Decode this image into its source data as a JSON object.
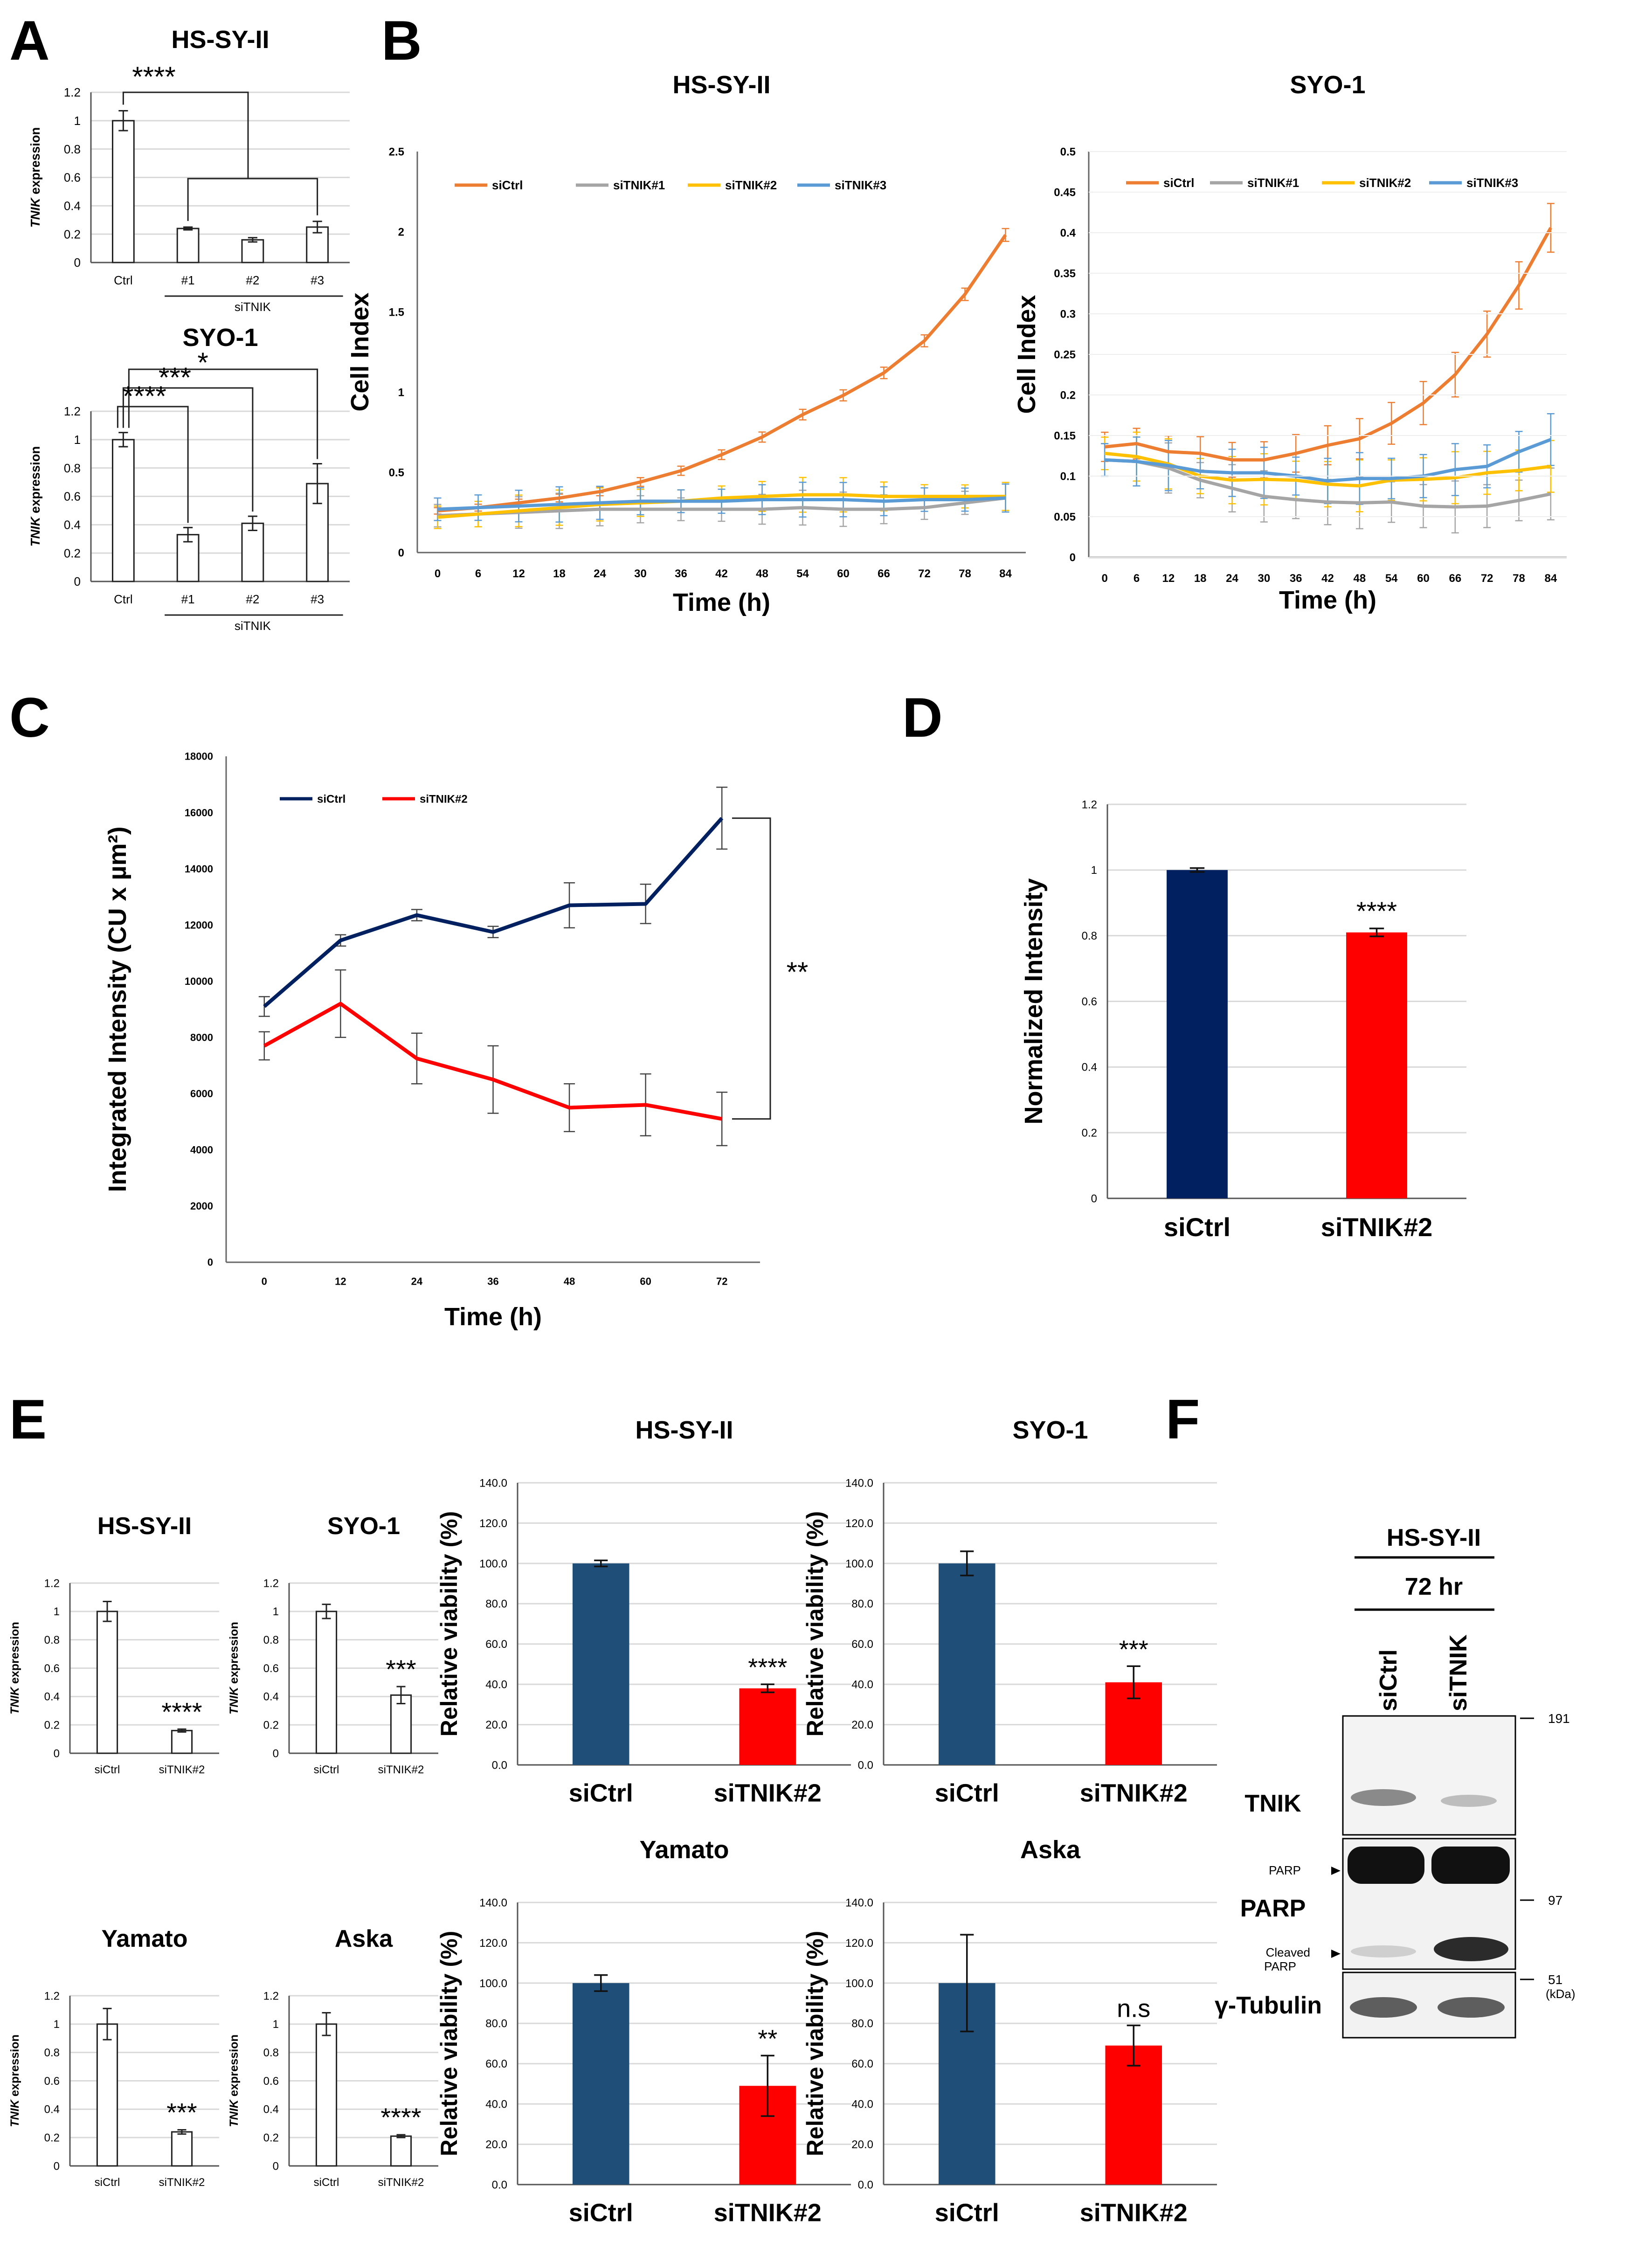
{
  "panel_letters": [
    "A",
    "B",
    "C",
    "D",
    "E",
    "F"
  ],
  "colors": {
    "orange": "#ED7D31",
    "gray": "#A5A5A5",
    "yellow": "#FFC000",
    "blue": "#5B9BD5",
    "navy": "#002060",
    "red": "#FF0000",
    "steel": "#1F4E79"
  },
  "chart_data": [
    {
      "id": "A1",
      "type": "bar",
      "title": "HS-SY-II",
      "ylabel": "TNIK expression",
      "categories": [
        "Ctrl",
        "#1",
        "#2",
        "#3"
      ],
      "group_label": "siTNIK",
      "values": [
        1.0,
        0.24,
        0.16,
        0.25
      ],
      "errors": [
        0.07,
        0.01,
        0.015,
        0.04
      ],
      "ylim": [
        0,
        1.2
      ],
      "yticks": [
        "0",
        "0.2",
        "0.4",
        "0.6",
        "0.8",
        "1",
        "1.2"
      ],
      "significance": [
        "****"
      ]
    },
    {
      "id": "A2",
      "type": "bar",
      "title": "SYO-1",
      "ylabel": "TNIK expression",
      "categories": [
        "Ctrl",
        "#1",
        "#2",
        "#3"
      ],
      "group_label": "siTNIK",
      "values": [
        1.0,
        0.33,
        0.41,
        0.69
      ],
      "errors": [
        0.05,
        0.05,
        0.05,
        0.14
      ],
      "ylim": [
        0,
        1.2
      ],
      "yticks": [
        "0",
        "0.2",
        "0.4",
        "0.6",
        "0.8",
        "1",
        "1.2"
      ],
      "significance": [
        "****",
        "***",
        "*"
      ]
    },
    {
      "id": "B1",
      "type": "line",
      "title": "HS-SY-II",
      "xlabel": "Time (h)",
      "ylabel": "Cell Index",
      "x": [
        0,
        6,
        12,
        18,
        24,
        30,
        36,
        42,
        48,
        54,
        60,
        66,
        72,
        78,
        84
      ],
      "xticks": [
        "0",
        "6",
        "12",
        "18",
        "24",
        "30",
        "36",
        "42",
        "48",
        "54",
        "60",
        "66",
        "72",
        "78",
        "84"
      ],
      "ylim": [
        0,
        2.5
      ],
      "yticks": [
        "0",
        "0.5",
        "1",
        "1.5",
        "2",
        "2.5"
      ],
      "series": [
        {
          "name": "siCtrl",
          "values": [
            0.26,
            0.28,
            0.31,
            0.34,
            0.38,
            0.44,
            0.51,
            0.61,
            0.72,
            0.86,
            0.98,
            1.12,
            1.32,
            1.61,
            1.98
          ]
        },
        {
          "name": "siTNIK#1",
          "values": [
            0.23,
            0.24,
            0.25,
            0.26,
            0.27,
            0.27,
            0.27,
            0.27,
            0.27,
            0.28,
            0.27,
            0.27,
            0.28,
            0.31,
            0.34
          ]
        },
        {
          "name": "siTNIK#2",
          "values": [
            0.22,
            0.24,
            0.26,
            0.28,
            0.3,
            0.31,
            0.32,
            0.34,
            0.35,
            0.36,
            0.36,
            0.35,
            0.35,
            0.35,
            0.35
          ]
        },
        {
          "name": "siTNIK#3",
          "values": [
            0.27,
            0.28,
            0.29,
            0.3,
            0.31,
            0.32,
            0.32,
            0.32,
            0.33,
            0.33,
            0.33,
            0.32,
            0.33,
            0.33,
            0.34
          ]
        }
      ]
    },
    {
      "id": "B2",
      "type": "line",
      "title": "SYO-1",
      "xlabel": "Time (h)",
      "ylabel": "Cell Index",
      "x": [
        0,
        6,
        12,
        18,
        24,
        30,
        36,
        42,
        48,
        54,
        60,
        66,
        72,
        78,
        84
      ],
      "xticks": [
        "0",
        "6",
        "12",
        "18",
        "24",
        "30",
        "36",
        "42",
        "48",
        "54",
        "60",
        "66",
        "72",
        "78",
        "84"
      ],
      "ylim": [
        0,
        0.5
      ],
      "yticks": [
        "0",
        "0.05",
        "0.1",
        "0.15",
        "0.2",
        "0.25",
        "0.3",
        "0.35",
        "0.4",
        "0.45",
        "0.5"
      ],
      "series": [
        {
          "name": "siCtrl",
          "values": [
            0.136,
            0.14,
            0.13,
            0.128,
            0.12,
            0.12,
            0.128,
            0.138,
            0.146,
            0.165,
            0.19,
            0.225,
            0.275,
            0.335,
            0.406
          ]
        },
        {
          "name": "siTNIK#1",
          "values": [
            0.12,
            0.118,
            0.11,
            0.095,
            0.085,
            0.075,
            0.071,
            0.068,
            0.067,
            0.068,
            0.063,
            0.062,
            0.063,
            0.07,
            0.078
          ]
        },
        {
          "name": "siTNIK#2",
          "values": [
            0.128,
            0.124,
            0.115,
            0.1,
            0.095,
            0.096,
            0.095,
            0.09,
            0.088,
            0.095,
            0.096,
            0.098,
            0.104,
            0.107,
            0.112
          ]
        },
        {
          "name": "siTNIK#3",
          "values": [
            0.12,
            0.118,
            0.113,
            0.106,
            0.104,
            0.104,
            0.1,
            0.094,
            0.097,
            0.097,
            0.1,
            0.108,
            0.112,
            0.13,
            0.145
          ]
        }
      ]
    },
    {
      "id": "C",
      "type": "line",
      "xlabel": "Time (h)",
      "ylabel": "Integrated Intensity (CU x µm²)",
      "x": [
        0,
        12,
        24,
        36,
        48,
        60,
        72
      ],
      "xticks": [
        "0",
        "12",
        "24",
        "36",
        "48",
        "60",
        "72"
      ],
      "ylim": [
        0,
        18000
      ],
      "yticks": [
        "0",
        "2000",
        "4000",
        "6000",
        "8000",
        "10000",
        "12000",
        "14000",
        "16000",
        "18000"
      ],
      "series": [
        {
          "name": "siCtrl",
          "values": [
            9100,
            11450,
            12350,
            11750,
            12700,
            12750,
            15800
          ],
          "errors": [
            350,
            200,
            200,
            200,
            800,
            700,
            1100
          ]
        },
        {
          "name": "siTNIK#2",
          "values": [
            7700,
            9200,
            7250,
            6500,
            5500,
            5600,
            5100
          ],
          "errors": [
            500,
            1200,
            900,
            1200,
            850,
            1100,
            950
          ]
        }
      ],
      "significance": "**"
    },
    {
      "id": "D",
      "type": "bar",
      "ylabel": "Normalized Intensity",
      "categories": [
        "siCtrl",
        "siTNIK#2"
      ],
      "values": [
        1.0,
        0.81
      ],
      "errors": [
        0.006,
        0.012
      ],
      "ylim": [
        0,
        1.2
      ],
      "yticks": [
        "0",
        "0.2",
        "0.4",
        "0.6",
        "0.8",
        "1",
        "1.2"
      ],
      "significance": "****"
    },
    {
      "id": "E1",
      "type": "bar",
      "title": "HS-SY-II",
      "ylabel": "TNIK expression",
      "categories": [
        "siCtrl",
        "siTNIK#2"
      ],
      "values": [
        1.0,
        0.16
      ],
      "errors": [
        0.07,
        0.01
      ],
      "ylim": [
        0,
        1.2
      ],
      "yticks": [
        "0",
        "0.2",
        "0.4",
        "0.6",
        "0.8",
        "1",
        "1.2"
      ],
      "significance": "****"
    },
    {
      "id": "E2",
      "type": "bar",
      "title": "SYO-1",
      "ylabel": "TNIK expression",
      "categories": [
        "siCtrl",
        "siTNIK#2"
      ],
      "values": [
        1.0,
        0.41
      ],
      "errors": [
        0.05,
        0.06
      ],
      "ylim": [
        0,
        1.2
      ],
      "yticks": [
        "0",
        "0.2",
        "0.4",
        "0.6",
        "0.8",
        "1",
        "1.2"
      ],
      "significance": "***"
    },
    {
      "id": "E3",
      "type": "bar",
      "title": "Yamato",
      "ylabel": "TNIK expression",
      "categories": [
        "siCtrl",
        "siTNIK#2"
      ],
      "values": [
        1.0,
        0.24
      ],
      "errors": [
        0.11,
        0.015
      ],
      "ylim": [
        0,
        1.2
      ],
      "yticks": [
        "0",
        "0.2",
        "0.4",
        "0.6",
        "0.8",
        "1",
        "1.2"
      ],
      "significance": "***"
    },
    {
      "id": "E4",
      "type": "bar",
      "title": "Aska",
      "ylabel": "TNIK expression",
      "categories": [
        "siCtrl",
        "siTNIK#2"
      ],
      "values": [
        1.0,
        0.21
      ],
      "errors": [
        0.08,
        0.01
      ],
      "ylim": [
        0,
        1.2
      ],
      "yticks": [
        "0",
        "0.2",
        "0.4",
        "0.6",
        "0.8",
        "1",
        "1.2"
      ],
      "significance": "****"
    },
    {
      "id": "E5",
      "type": "bar",
      "title": "HS-SY-II",
      "ylabel": "Relative viability (%)",
      "categories": [
        "siCtrl",
        "siTNIK#2"
      ],
      "values": [
        100,
        38
      ],
      "errors": [
        1.5,
        2
      ],
      "ylim": [
        0,
        140
      ],
      "yticks": [
        "0.0",
        "20.0",
        "40.0",
        "60.0",
        "80.0",
        "100.0",
        "120.0",
        "140.0"
      ],
      "significance": "****"
    },
    {
      "id": "E6",
      "type": "bar",
      "title": "SYO-1",
      "ylabel": "Relative viability (%)",
      "categories": [
        "siCtrl",
        "siTNIK#2"
      ],
      "values": [
        100,
        41
      ],
      "errors": [
        6,
        8
      ],
      "ylim": [
        0,
        140
      ],
      "yticks": [
        "0.0",
        "20.0",
        "40.0",
        "60.0",
        "80.0",
        "100.0",
        "120.0",
        "140.0"
      ],
      "significance": "***"
    },
    {
      "id": "E7",
      "type": "bar",
      "title": "Yamato",
      "ylabel": "Relative viability (%)",
      "categories": [
        "siCtrl",
        "siTNIK#2"
      ],
      "values": [
        100,
        49
      ],
      "errors": [
        4,
        15
      ],
      "ylim": [
        0,
        140
      ],
      "yticks": [
        "0.0",
        "20.0",
        "40.0",
        "60.0",
        "80.0",
        "100.0",
        "120.0",
        "140.0"
      ],
      "significance": "**"
    },
    {
      "id": "E8",
      "type": "bar",
      "title": "Aska",
      "ylabel": "Relative viability (%)",
      "categories": [
        "siCtrl",
        "siTNIK#2"
      ],
      "values": [
        100,
        69
      ],
      "errors": [
        24,
        10
      ],
      "ylim": [
        0,
        140
      ],
      "yticks": [
        "0.0",
        "20.0",
        "40.0",
        "60.0",
        "80.0",
        "100.0",
        "120.0",
        "140.0"
      ],
      "significance": "n.s"
    }
  ],
  "western_blot": {
    "cell_line": "HS-SY-II",
    "time": "72 hr",
    "lanes": [
      "siCtrl",
      "siTNIK"
    ],
    "rows": [
      "TNIK",
      "PARP",
      "γ-Tubulin"
    ],
    "markers": [
      "191",
      "97",
      "51"
    ],
    "unit": "(kDa)",
    "arrows": [
      "PARP",
      "Cleaved\nPARP"
    ],
    "arrow_lines": [
      "PARP",
      "Cleaved",
      "PARP"
    ]
  }
}
